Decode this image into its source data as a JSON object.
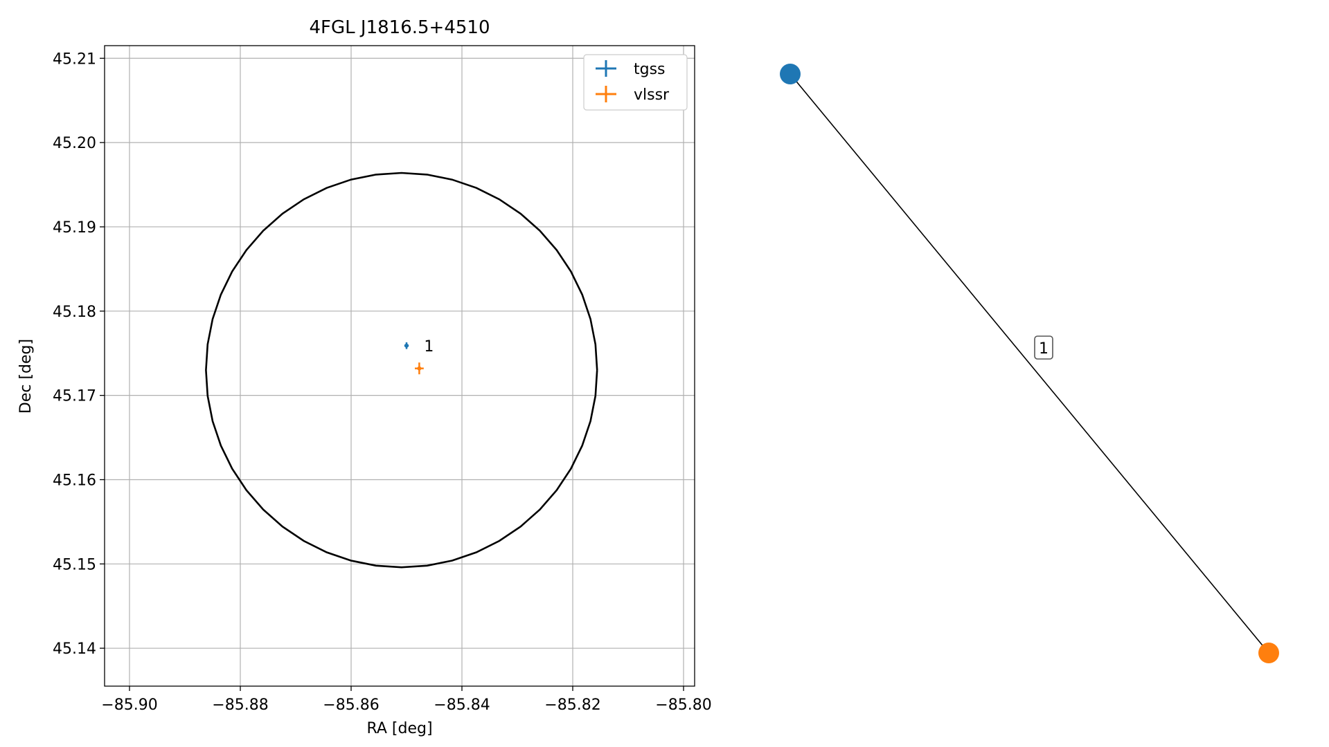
{
  "chart_data": [
    {
      "type": "scatter",
      "title": "4FGL J1816.5+4510",
      "xlabel": "RA [deg]",
      "ylabel": "Dec [deg]",
      "xlim": [
        -85.9045,
        -85.798
      ],
      "ylim": [
        45.1355,
        45.2115
      ],
      "x_ticks": [
        -85.9,
        -85.88,
        -85.86,
        -85.84,
        -85.82,
        -85.8
      ],
      "x_tick_labels": [
        "−85.90",
        "−85.88",
        "−85.86",
        "−85.84",
        "−85.82",
        "−85.80"
      ],
      "y_ticks": [
        45.14,
        45.15,
        45.16,
        45.17,
        45.18,
        45.19,
        45.2,
        45.21
      ],
      "y_tick_labels": [
        "45.14",
        "45.15",
        "45.16",
        "45.17",
        "45.18",
        "45.19",
        "45.20",
        "45.21"
      ],
      "grid": true,
      "legend_position": "top-right",
      "series": [
        {
          "name": "tgss",
          "color": "#1f77b4",
          "x": -85.85,
          "y": 45.1759,
          "xerr": 0.0004,
          "yerr": 0.0004
        },
        {
          "name": "vlssr",
          "color": "#ff7f0e",
          "x": -85.8477,
          "y": 45.1732,
          "xerr": 0.0008,
          "yerr": 0.0007
        }
      ],
      "annotations": [
        {
          "text": "1",
          "x": -85.8472,
          "y": 45.1759
        }
      ],
      "ellipse": {
        "center_ra": -85.8509,
        "center_dec": 45.173,
        "radius_ra": 0.0353,
        "radius_dec": 0.0234,
        "color": "#000000"
      }
    },
    {
      "type": "graph",
      "nodes": [
        {
          "id": "tgss",
          "color": "#1f77b4"
        },
        {
          "id": "vlssr",
          "color": "#ff7f0e"
        }
      ],
      "edges": [
        {
          "source": "tgss",
          "target": "vlssr",
          "label": "1"
        }
      ]
    }
  ]
}
